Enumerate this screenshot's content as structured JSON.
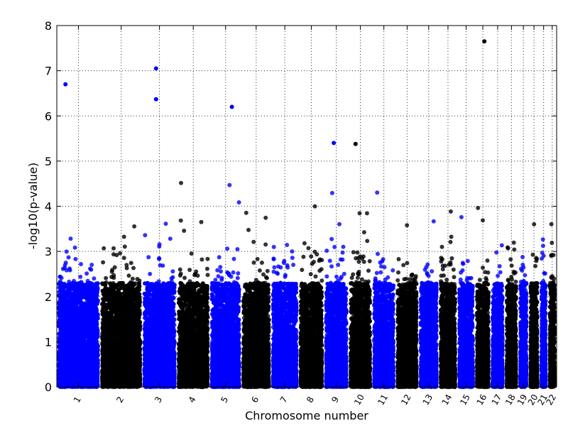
{
  "chart_data": {
    "type": "scatter",
    "title": "",
    "xlabel": "Chromosome number",
    "ylabel": "-log10(p-value)",
    "ylim": [
      0,
      8
    ],
    "yticks": [
      0,
      1,
      2,
      3,
      4,
      5,
      6,
      7,
      8
    ],
    "grid": true,
    "colors": [
      "#0000ff",
      "#000000"
    ],
    "chromosomes": [
      {
        "label": "1",
        "length": 249
      },
      {
        "label": "2",
        "length": 243
      },
      {
        "label": "3",
        "length": 198
      },
      {
        "label": "4",
        "length": 191
      },
      {
        "label": "5",
        "length": 181
      },
      {
        "label": "6",
        "length": 171
      },
      {
        "label": "7",
        "length": 159
      },
      {
        "label": "8",
        "length": 146
      },
      {
        "label": "9",
        "length": 141
      },
      {
        "label": "10",
        "length": 136
      },
      {
        "label": "11",
        "length": 135
      },
      {
        "label": "12",
        "length": 133
      },
      {
        "label": "13",
        "length": 115
      },
      {
        "label": "14",
        "length": 107
      },
      {
        "label": "15",
        "length": 102
      },
      {
        "label": "16",
        "length": 90
      },
      {
        "label": "17",
        "length": 81
      },
      {
        "label": "18",
        "length": 78
      },
      {
        "label": "19",
        "length": 59
      },
      {
        "label": "20",
        "length": 63
      },
      {
        "label": "21",
        "length": 48
      },
      {
        "label": "22",
        "length": 51
      }
    ],
    "top_hits": [
      {
        "chromosome": "1",
        "value": 6.7
      },
      {
        "chromosome": "3",
        "value": 7.05
      },
      {
        "chromosome": "3",
        "value": 6.37
      },
      {
        "chromosome": "5",
        "value": 6.2
      },
      {
        "chromosome": "9",
        "value": 5.4
      },
      {
        "chromosome": "10",
        "value": 5.38
      },
      {
        "chromosome": "16",
        "value": 7.65
      }
    ]
  }
}
